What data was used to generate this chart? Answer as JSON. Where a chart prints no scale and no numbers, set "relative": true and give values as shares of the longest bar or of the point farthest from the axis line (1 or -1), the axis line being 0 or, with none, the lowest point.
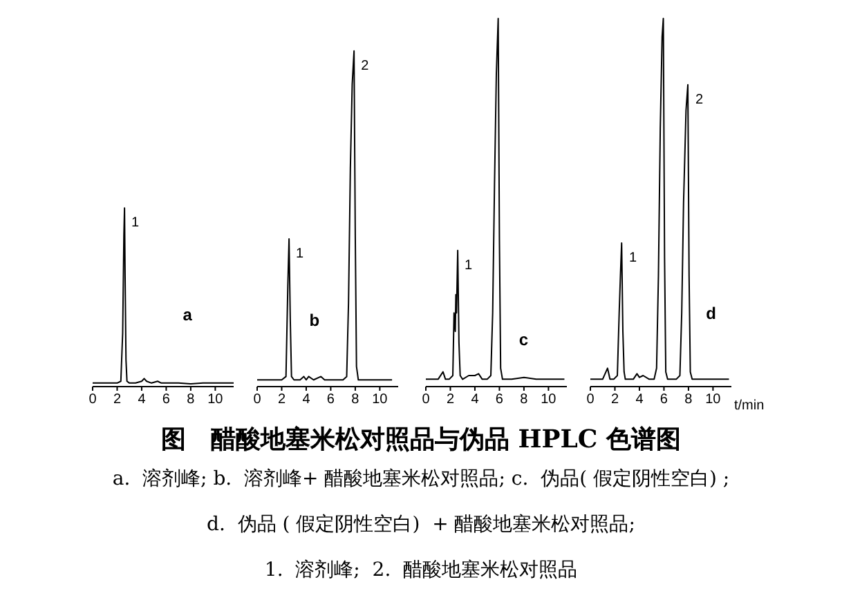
{
  "chart_data": [
    {
      "type": "line",
      "title": "a",
      "relative": true,
      "xlim": [
        0,
        11.5
      ],
      "xticks": [
        0,
        2,
        4,
        6,
        8,
        10
      ],
      "marker": "none",
      "series": [
        {
          "color": "#000000",
          "x": [
            0,
            0.5,
            1,
            1.5,
            2,
            2.3,
            2.45,
            2.55,
            2.6,
            2.65,
            2.72,
            2.8,
            3,
            3.5,
            4,
            4.2,
            4.4,
            4.8,
            5.3,
            5.6,
            6,
            7,
            8,
            9,
            10,
            11,
            11.5
          ],
          "values": [
            0.02,
            0.02,
            0.02,
            0.02,
            0.02,
            0.03,
            0.3,
            0.85,
            1,
            0.6,
            0.15,
            0.03,
            0.02,
            0.02,
            0.03,
            0.045,
            0.03,
            0.02,
            0.03,
            0.02,
            0.02,
            0.02,
            0.015,
            0.02,
            0.02,
            0.02,
            0.02
          ]
        }
      ],
      "annotations": [
        {
          "text": "1",
          "x": 2.6,
          "y": 1
        },
        "图　醋酸地塞米松对照品与伪品 HPLC 色谱图",
        "a.  溶剂峰; b.  溶剂峰+ 醋酸地塞米松对照品; c.  伪品( 假定阴性空白) ;",
        "d.  伪品 ( 假定阴性空白)  + 醋酸地塞米松对照品;",
        "1.  溶剂峰;  2.  醋酸地塞米松对照品"
      ]
    },
    {
      "type": "line",
      "title": "b",
      "relative": true,
      "xlim": [
        0,
        11.5
      ],
      "xticks": [
        0,
        2,
        4,
        6,
        8,
        10
      ],
      "marker": "none",
      "series": [
        {
          "color": "#000000",
          "x": [
            0,
            1,
            2,
            2.35,
            2.5,
            2.6,
            2.7,
            2.8,
            3,
            3.5,
            3.8,
            4,
            4.2,
            4.6,
            5.2,
            5.5,
            6,
            6.5,
            7,
            7.3,
            7.45,
            7.6,
            7.75,
            7.9,
            8,
            8.1,
            8.25,
            8.5,
            9,
            10,
            11
          ],
          "values": [
            0.02,
            0.02,
            0.02,
            0.03,
            0.3,
            0.44,
            0.2,
            0.03,
            0.02,
            0.02,
            0.03,
            0.02,
            0.03,
            0.02,
            0.03,
            0.02,
            0.02,
            0.02,
            0.02,
            0.03,
            0.25,
            0.65,
            0.9,
            1,
            0.45,
            0.06,
            0.02,
            0.02,
            0.02,
            0.02,
            0.02
          ]
        }
      ],
      "annotations": [
        {
          "text": "1",
          "x": 2.6,
          "y": 0.44
        },
        {
          "text": "2",
          "x": 7.9,
          "y": 1
        }
      ]
    },
    {
      "type": "line",
      "title": "c",
      "relative": true,
      "xlim": [
        0,
        11.5
      ],
      "xticks": [
        0,
        2,
        4,
        6,
        8,
        10
      ],
      "marker": "none",
      "series": [
        {
          "color": "#000000",
          "x": [
            0,
            1,
            1.4,
            1.6,
            1.9,
            2.2,
            2.3,
            2.4,
            2.45,
            2.5,
            2.6,
            2.7,
            2.8,
            3,
            3.5,
            4,
            4.3,
            4.6,
            5,
            5.3,
            5.45,
            5.6,
            5.75,
            5.9,
            6,
            6.1,
            6.25,
            6.5,
            7,
            8,
            9,
            10,
            11.3
          ],
          "values": [
            0.02,
            0.02,
            0.04,
            0.02,
            0.02,
            0.03,
            0.2,
            0.15,
            0.25,
            0.2,
            0.37,
            0.12,
            0.03,
            0.02,
            0.03,
            0.03,
            0.035,
            0.02,
            0.02,
            0.03,
            0.2,
            0.55,
            0.85,
            1,
            0.4,
            0.05,
            0.02,
            0.02,
            0.02,
            0.025,
            0.02,
            0.02,
            0.02
          ]
        }
      ],
      "annotations": [
        {
          "text": "1",
          "x": 2.6,
          "y": 0.37
        }
      ]
    },
    {
      "type": "line",
      "title": "d",
      "xlabel": "t/min",
      "relative": true,
      "xlim": [
        0,
        11.5
      ],
      "xticks": [
        0,
        2,
        4,
        6,
        8,
        10
      ],
      "marker": "none",
      "series": [
        {
          "color": "#000000",
          "x": [
            0,
            1,
            1.4,
            1.6,
            1.9,
            2.2,
            2.35,
            2.45,
            2.55,
            2.65,
            2.75,
            2.85,
            3,
            3.5,
            3.8,
            4,
            4.3,
            4.8,
            5.2,
            5.4,
            5.55,
            5.7,
            5.85,
            5.95,
            6.05,
            6.15,
            6.3,
            6.6,
            7,
            7.3,
            7.45,
            7.6,
            7.8,
            7.95,
            8.05,
            8.15,
            8.3,
            8.6,
            9,
            10,
            11.3
          ],
          "values": [
            0.02,
            0.02,
            0.05,
            0.02,
            0.02,
            0.03,
            0.2,
            0.3,
            0.39,
            0.15,
            0.04,
            0.02,
            0.02,
            0.02,
            0.035,
            0.025,
            0.03,
            0.02,
            0.02,
            0.05,
            0.3,
            0.7,
            0.95,
            1,
            0.35,
            0.04,
            0.02,
            0.02,
            0.02,
            0.03,
            0.2,
            0.5,
            0.75,
            0.82,
            0.3,
            0.04,
            0.02,
            0.02,
            0.02,
            0.02,
            0.02
          ]
        }
      ],
      "annotations": [
        {
          "text": "1",
          "x": 2.6,
          "y": 0.39
        },
        {
          "text": "2",
          "x": 8,
          "y": 0.82
        }
      ]
    }
  ]
}
